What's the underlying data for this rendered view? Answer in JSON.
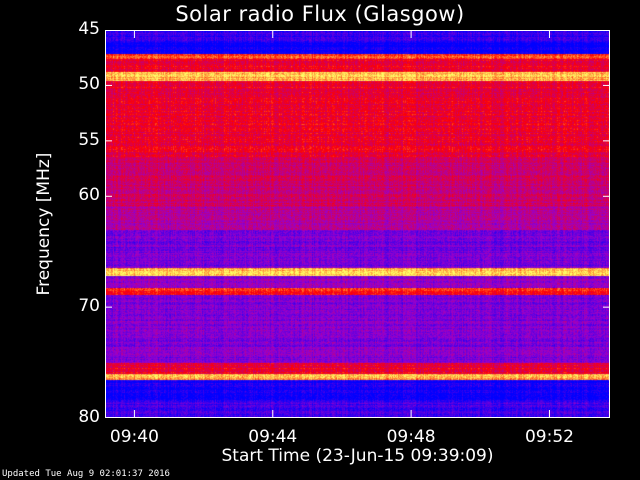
{
  "chart_data": {
    "type": "heatmap",
    "title": "Solar radio Flux (Glasgow)",
    "xlabel": "Start Time (23-Jun-15 09:39:09)",
    "ylabel": "Frequency [MHz]",
    "xlim": [
      "09:39:09",
      "09:53:45"
    ],
    "ylim": [
      45,
      80
    ],
    "y_inverted": true,
    "x_ticks": [
      "09:40",
      "09:44",
      "09:48",
      "09:52"
    ],
    "y_ticks": [
      45,
      50,
      55,
      60,
      70,
      80
    ],
    "colormap": [
      "#0000ff",
      "#9900cc",
      "#ff0000",
      "#ffff66"
    ],
    "bands": [
      {
        "from": 45.0,
        "to": 46.1,
        "level": 0.1
      },
      {
        "from": 46.1,
        "to": 47.2,
        "level": 0.0
      },
      {
        "from": 47.2,
        "to": 47.6,
        "level": 0.75
      },
      {
        "from": 47.6,
        "to": 48.8,
        "level": 0.6
      },
      {
        "from": 48.8,
        "to": 49.6,
        "level": 0.92
      },
      {
        "from": 49.6,
        "to": 56.5,
        "level": 0.6
      },
      {
        "from": 56.5,
        "to": 61.0,
        "level": 0.5
      },
      {
        "from": 61.0,
        "to": 63.0,
        "level": 0.42
      },
      {
        "from": 63.0,
        "to": 66.5,
        "level": 0.25
      },
      {
        "from": 66.5,
        "to": 67.2,
        "level": 0.92
      },
      {
        "from": 67.2,
        "to": 68.3,
        "level": 0.32
      },
      {
        "from": 68.3,
        "to": 68.9,
        "level": 0.7
      },
      {
        "from": 68.9,
        "to": 75.0,
        "level": 0.28
      },
      {
        "from": 75.0,
        "to": 76.0,
        "level": 0.6
      },
      {
        "from": 76.0,
        "to": 76.6,
        "level": 0.88
      },
      {
        "from": 76.6,
        "to": 78.5,
        "level": 0.05
      },
      {
        "from": 78.5,
        "to": 80.0,
        "level": 0.15
      }
    ],
    "updated": "Updated Tue Aug  9 02:01:37 2016"
  }
}
